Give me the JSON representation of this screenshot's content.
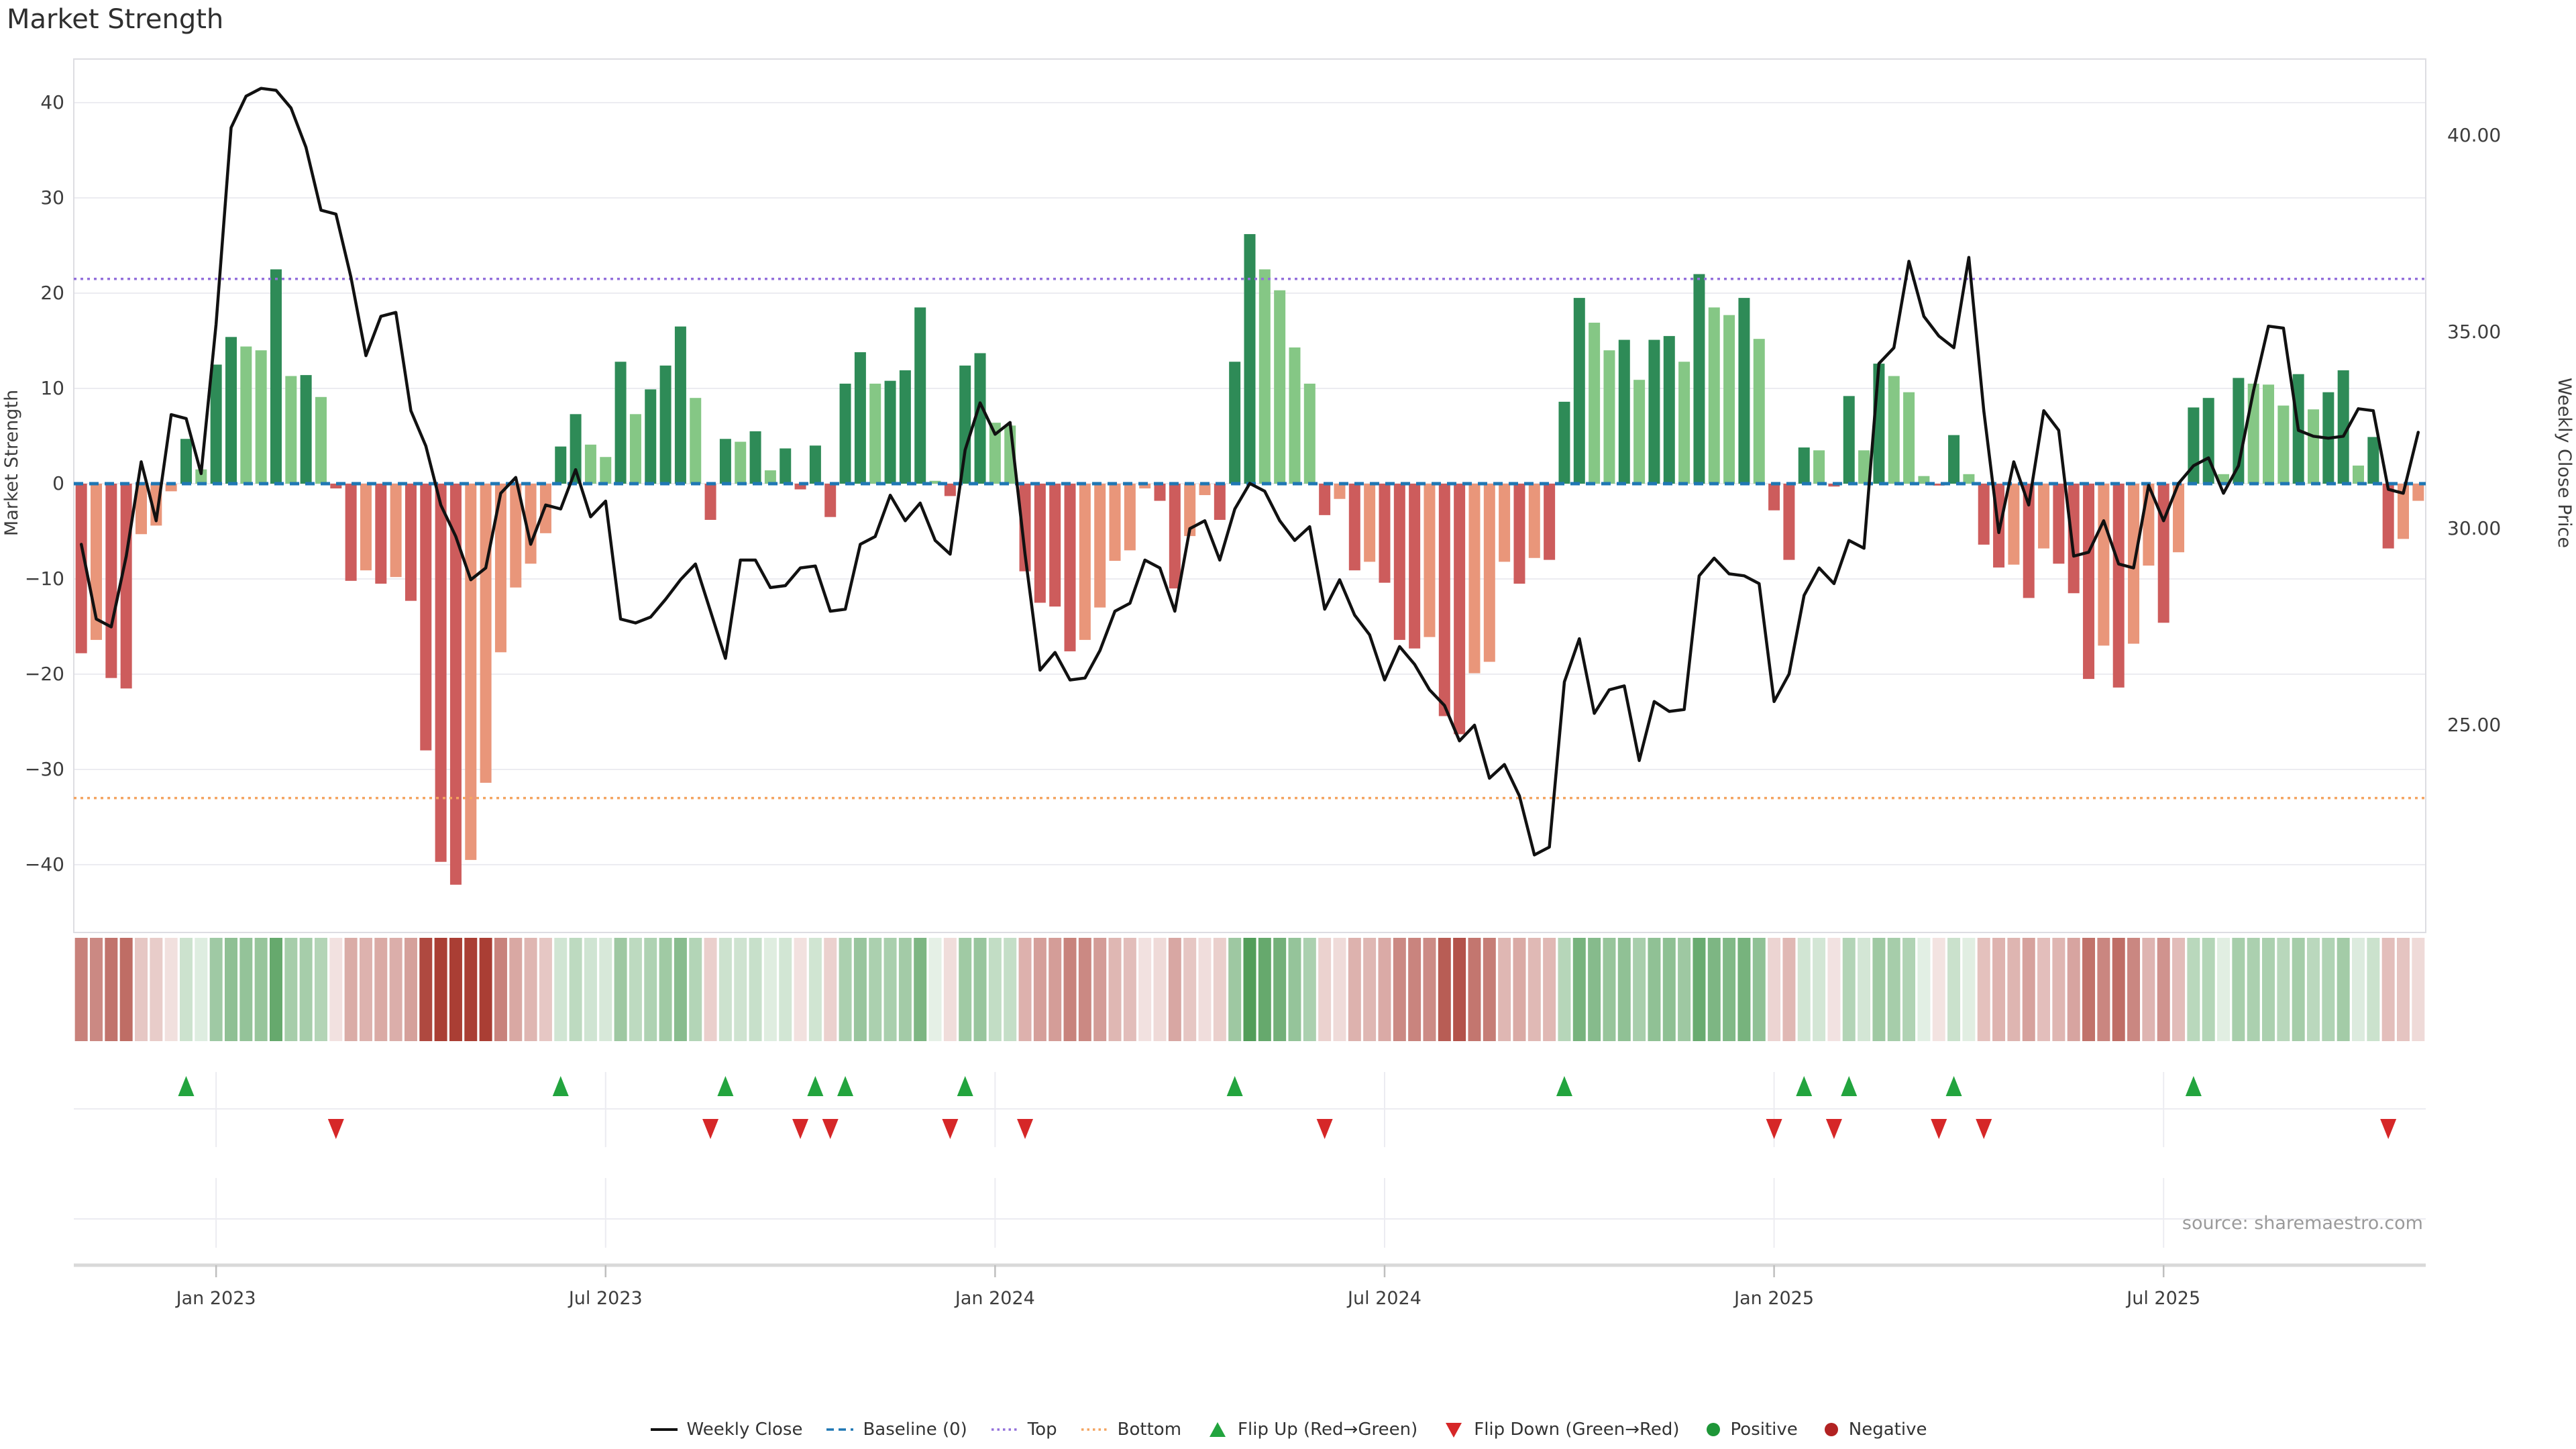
{
  "title": "Market Strength",
  "source": "source: sharemaestro.com",
  "axes": {
    "left": {
      "label": "Market Strength",
      "ticks": [
        {
          "value": 40,
          "label": "40"
        },
        {
          "value": 30,
          "label": "30"
        },
        {
          "value": 20,
          "label": "20"
        },
        {
          "value": 10,
          "label": "10"
        },
        {
          "value": 0,
          "label": "0"
        },
        {
          "value": -10,
          "label": "−10"
        },
        {
          "value": -20,
          "label": "−20"
        },
        {
          "value": -30,
          "label": "−30"
        },
        {
          "value": -40,
          "label": "−40"
        }
      ]
    },
    "right": {
      "label": "Weekly Close Price",
      "ticks": [
        {
          "value": 40,
          "label": "40.00"
        },
        {
          "value": 35,
          "label": "35.00"
        },
        {
          "value": 30,
          "label": "30.00"
        },
        {
          "value": 25,
          "label": "25.00"
        }
      ]
    },
    "x": {
      "ticks": [
        {
          "index": 9,
          "label": "Jan 2023"
        },
        {
          "index": 35,
          "label": "Jul 2023"
        },
        {
          "index": 61,
          "label": "Jan 2024"
        },
        {
          "index": 87,
          "label": "Jul 2024"
        },
        {
          "index": 113,
          "label": "Jan 2025"
        },
        {
          "index": 139,
          "label": "Jul 2025"
        }
      ]
    }
  },
  "reference_lines": {
    "baseline": {
      "value": 0,
      "style": "dashed",
      "color": "#1f77b4"
    },
    "top": {
      "value": 21.5,
      "style": "dotted",
      "color": "#9370db"
    },
    "bottom": {
      "value": -33,
      "style": "dotted",
      "color": "#f4a460"
    }
  },
  "colors": {
    "bar_positive_strong": "#2e8b57",
    "bar_positive_weak": "#85c785",
    "bar_negative_strong": "#cd5c5c",
    "bar_negative_weak": "#e9967a",
    "price_line": "#111111",
    "flip_up_marker": "#22a43e",
    "flip_down_marker": "#d62728",
    "positive_marker": "#1e9638",
    "negative_marker": "#b22222",
    "grid": "#ececf1",
    "spine": "#dddde2",
    "axis_band": "#d9d9d9",
    "tick_text": "#3d3d3d",
    "source_text": "#9a9a9a",
    "heat_pos": [
      82,
      158,
      90
    ],
    "heat_neg": [
      170,
      62,
      52
    ]
  },
  "legend": {
    "items": [
      {
        "label": "Weekly Close",
        "swatch": "line-black"
      },
      {
        "label": "Baseline (0)",
        "swatch": "dash-blue"
      },
      {
        "label": "Top",
        "swatch": "dot-purple"
      },
      {
        "label": "Bottom",
        "swatch": "dot-orange"
      },
      {
        "label": "Flip Up (Red→Green)",
        "swatch": "tri-up"
      },
      {
        "label": "Flip Down (Green→Red)",
        "swatch": "tri-down"
      },
      {
        "label": "Positive",
        "swatch": "circle-green"
      },
      {
        "label": "Negative",
        "swatch": "circle-red"
      }
    ]
  },
  "chart_data": {
    "type": "combo: weekly bar (Market Strength, left axis) + line (Weekly Close Price, right axis) + heatmap strip + flip markers",
    "weeks": 157,
    "x_range_note": "weekly bars, ticks at Jan/Jul 2023-2025",
    "left_ylim": [
      -47,
      47
    ],
    "right_ylim_ticks": [
      25,
      30,
      35,
      40
    ],
    "top_line": 21.5,
    "bottom_line": -33,
    "strength": [
      -17.8,
      -16.4,
      -20.4,
      -21.5,
      -5.3,
      -4.4,
      -0.8,
      4.7,
      1.5,
      12.5,
      15.4,
      14.4,
      14.0,
      22.5,
      11.3,
      11.4,
      9.1,
      -0.5,
      -10.2,
      -9.1,
      -10.5,
      -9.8,
      -12.3,
      -28.0,
      -39.7,
      -42.1,
      -39.5,
      -31.4,
      -17.7,
      -10.9,
      -8.4,
      -5.2,
      3.9,
      7.3,
      4.1,
      2.8,
      12.8,
      7.3,
      9.9,
      12.4,
      16.5,
      9.0,
      -3.8,
      4.7,
      4.4,
      5.5,
      1.4,
      3.7,
      -0.6,
      4.0,
      -3.5,
      10.5,
      13.8,
      10.5,
      10.8,
      11.9,
      18.5,
      0.3,
      -1.3,
      12.4,
      13.7,
      6.4,
      6.1,
      -9.2,
      -12.5,
      -12.9,
      -17.6,
      -16.4,
      -13.0,
      -8.1,
      -7.0,
      -0.5,
      -1.8,
      -11.0,
      -5.5,
      -1.2,
      -3.8,
      12.8,
      26.2,
      22.5,
      20.3,
      14.3,
      10.5,
      -3.3,
      -1.6,
      -9.1,
      -8.2,
      -10.4,
      -16.4,
      -17.3,
      -16.1,
      -24.4,
      -26.3,
      -19.9,
      -18.7,
      -8.2,
      -10.5,
      -7.8,
      -8.0,
      8.6,
      19.5,
      16.9,
      14.0,
      15.1,
      10.9,
      15.1,
      15.5,
      12.8,
      22.0,
      18.5,
      17.7,
      19.5,
      15.2,
      -2.8,
      -8.0,
      3.8,
      3.5,
      -0.3,
      9.2,
      3.5,
      12.6,
      11.3,
      9.6,
      0.8,
      -0.2,
      5.1,
      1.0,
      -6.4,
      -8.8,
      -8.5,
      -12.0,
      -6.8,
      -8.4,
      -11.5,
      -20.5,
      -17.0,
      -21.4,
      -16.8,
      -8.6,
      -14.6,
      -7.2,
      8.0,
      9.0,
      1.0,
      11.1,
      10.5,
      10.4,
      8.2,
      11.5,
      7.8,
      9.6,
      11.9,
      1.9,
      4.9,
      -6.8,
      -5.8,
      -1.8
    ],
    "close": [
      29.6,
      27.7,
      27.5,
      29.3,
      31.7,
      30.2,
      32.9,
      32.8,
      31.4,
      35.2,
      40.2,
      41.0,
      41.2,
      41.15,
      40.7,
      39.7,
      38.1,
      38.0,
      36.4,
      34.4,
      35.4,
      35.5,
      33.0,
      32.1,
      30.6,
      29.8,
      28.7,
      29.0,
      30.9,
      31.3,
      29.6,
      30.6,
      30.5,
      31.5,
      30.3,
      30.7,
      27.7,
      27.6,
      27.75,
      28.2,
      28.7,
      29.1,
      27.9,
      26.7,
      29.2,
      29.2,
      28.5,
      28.55,
      29.0,
      29.05,
      27.9,
      27.95,
      29.6,
      29.8,
      30.85,
      30.2,
      30.65,
      29.7,
      29.35,
      32.0,
      33.2,
      32.4,
      32.7,
      29.35,
      26.4,
      26.85,
      26.15,
      26.2,
      26.9,
      27.9,
      28.1,
      29.2,
      29.0,
      27.9,
      30.0,
      30.2,
      29.2,
      30.5,
      31.15,
      30.95,
      30.2,
      29.7,
      30.05,
      27.95,
      28.7,
      27.8,
      27.3,
      26.15,
      27.0,
      26.55,
      25.9,
      25.5,
      24.6,
      25.0,
      23.65,
      24.0,
      23.2,
      21.7,
      21.9,
      26.1,
      27.2,
      25.3,
      25.9,
      26.0,
      24.1,
      25.6,
      25.35,
      25.4,
      28.8,
      29.25,
      28.85,
      28.8,
      28.6,
      25.6,
      26.3,
      28.3,
      29.0,
      28.6,
      29.7,
      29.5,
      34.2,
      34.6,
      36.8,
      35.4,
      34.9,
      34.6,
      36.9,
      33.0,
      29.9,
      31.7,
      30.6,
      33.0,
      32.5,
      29.3,
      29.4,
      30.2,
      29.1,
      29.0,
      31.1,
      30.2,
      31.15,
      31.6,
      31.8,
      30.9,
      31.6,
      33.5,
      35.15,
      35.1,
      32.5,
      32.35,
      32.3,
      32.35,
      33.05,
      33.0,
      31.0,
      30.9,
      32.45
    ],
    "flip_up_weeks": [
      7,
      32,
      43,
      49,
      51,
      59,
      77,
      99,
      115,
      118,
      125,
      141
    ],
    "flip_down_weeks": [
      17,
      42,
      48,
      50,
      58,
      63,
      83,
      113,
      117,
      124,
      127,
      154
    ]
  }
}
